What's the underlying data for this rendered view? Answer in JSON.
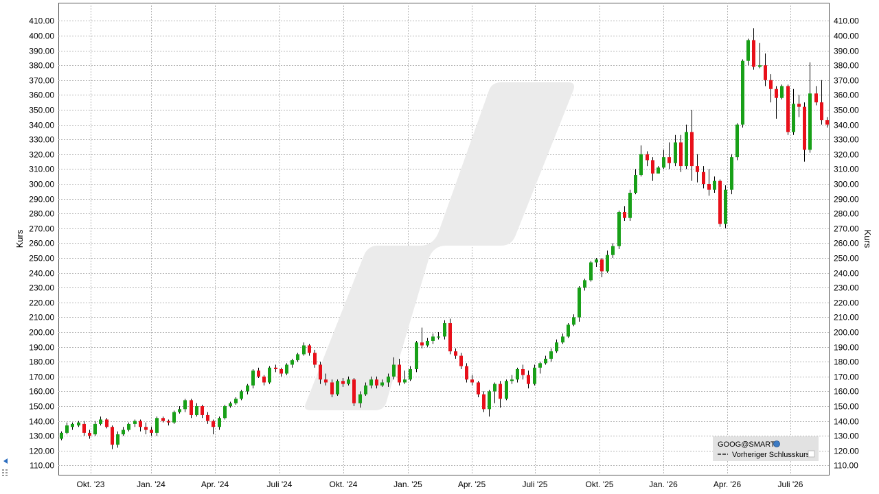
{
  "chart_data": {
    "type": "candlestick",
    "symbol": "GOOG@SMART",
    "ylabel_left": "Kurs",
    "ylabel_right": "Kurs",
    "ylim": [
      104,
      414
    ],
    "y_ticks": [
      110,
      120,
      130,
      140,
      150,
      160,
      170,
      180,
      190,
      200,
      210,
      220,
      230,
      240,
      250,
      260,
      270,
      280,
      290,
      300,
      310,
      320,
      330,
      340,
      350,
      360,
      370,
      380,
      390,
      400,
      410
    ],
    "x_ticks": [
      "Okt. '23",
      "Jan. '24",
      "Apr. '24",
      "Juli '24",
      "Okt. '24",
      "Jan. '25",
      "Apr. '25",
      "Juli '25",
      "Okt. '25",
      "Jan. '26",
      "Apr. '26",
      "Juli '26"
    ],
    "grid": true,
    "legend": {
      "position": "bottom-right",
      "title": "GOOG@SMART",
      "items": [
        "Vorheriger Schlusskurs"
      ]
    },
    "up_color": "#18a018",
    "down_color": "#e8101a",
    "candles": [
      [
        128,
        132,
        127,
        133
      ],
      [
        132,
        137,
        131,
        139
      ],
      [
        136,
        138,
        134,
        139
      ],
      [
        137,
        139,
        136,
        140
      ],
      [
        138,
        132,
        130,
        140
      ],
      [
        132,
        130,
        128,
        134
      ],
      [
        131,
        138,
        130,
        140
      ],
      [
        138,
        141,
        137,
        143
      ],
      [
        141,
        136,
        135,
        142
      ],
      [
        136,
        124,
        121,
        137
      ],
      [
        124,
        131,
        122,
        133
      ],
      [
        131,
        134,
        130,
        136
      ],
      [
        134,
        138,
        133,
        139
      ],
      [
        138,
        140,
        136,
        141
      ],
      [
        140,
        136,
        133,
        141
      ],
      [
        136,
        134,
        131,
        139
      ],
      [
        134,
        132,
        130,
        136
      ],
      [
        132,
        142,
        130,
        143
      ],
      [
        142,
        140,
        139,
        143
      ],
      [
        140,
        139,
        137,
        141
      ],
      [
        139,
        146,
        138,
        147
      ],
      [
        146,
        148,
        145,
        150
      ],
      [
        148,
        154,
        146,
        155
      ],
      [
        154,
        144,
        142,
        155
      ],
      [
        144,
        150,
        143,
        152
      ],
      [
        150,
        144,
        142,
        151
      ],
      [
        144,
        140,
        138,
        146
      ],
      [
        140,
        136,
        131,
        141
      ],
      [
        136,
        142,
        134,
        143
      ],
      [
        142,
        150,
        141,
        151
      ],
      [
        150,
        152,
        149,
        153
      ],
      [
        152,
        155,
        151,
        156
      ],
      [
        155,
        160,
        154,
        161
      ],
      [
        160,
        164,
        158,
        165
      ],
      [
        164,
        174,
        162,
        175
      ],
      [
        174,
        170,
        169,
        176
      ],
      [
        170,
        166,
        164,
        171
      ],
      [
        166,
        176,
        165,
        177
      ],
      [
        176,
        175,
        173,
        178
      ],
      [
        175,
        172,
        170,
        176
      ],
      [
        172,
        178,
        171,
        179
      ],
      [
        178,
        181,
        176,
        182
      ],
      [
        181,
        185,
        180,
        186
      ],
      [
        185,
        191,
        184,
        193
      ],
      [
        191,
        186,
        184,
        192
      ],
      [
        186,
        178,
        176,
        188
      ],
      [
        178,
        168,
        165,
        180
      ],
      [
        168,
        166,
        164,
        172
      ],
      [
        166,
        158,
        156,
        168
      ],
      [
        158,
        167,
        157,
        168
      ],
      [
        167,
        165,
        163,
        169
      ],
      [
        165,
        168,
        164,
        170
      ],
      [
        168,
        152,
        150,
        169
      ],
      [
        152,
        158,
        149,
        160
      ],
      [
        158,
        164,
        157,
        166
      ],
      [
        164,
        168,
        162,
        170
      ],
      [
        168,
        164,
        162,
        170
      ],
      [
        164,
        166,
        163,
        168
      ],
      [
        166,
        170,
        163,
        172
      ],
      [
        170,
        178,
        168,
        183
      ],
      [
        178,
        166,
        164,
        182
      ],
      [
        166,
        168,
        165,
        174
      ],
      [
        168,
        175,
        167,
        177
      ],
      [
        175,
        193,
        173,
        194
      ],
      [
        193,
        191,
        189,
        203
      ],
      [
        191,
        194,
        190,
        196
      ],
      [
        194,
        197,
        192,
        199
      ],
      [
        197,
        197,
        195,
        200
      ],
      [
        197,
        206,
        195,
        208
      ],
      [
        206,
        187,
        185,
        209
      ],
      [
        187,
        184,
        182,
        189
      ],
      [
        184,
        177,
        175,
        186
      ],
      [
        177,
        168,
        166,
        179
      ],
      [
        168,
        166,
        164,
        171
      ],
      [
        166,
        158,
        156,
        167
      ],
      [
        158,
        148,
        146,
        160
      ],
      [
        148,
        160,
        143,
        161
      ],
      [
        160,
        165,
        152,
        166
      ],
      [
        165,
        155,
        149,
        167
      ],
      [
        155,
        167,
        154,
        168
      ],
      [
        167,
        168,
        165,
        171
      ],
      [
        168,
        175,
        166,
        176
      ],
      [
        175,
        171,
        168,
        178
      ],
      [
        171,
        165,
        162,
        174
      ],
      [
        165,
        176,
        164,
        178
      ],
      [
        176,
        179,
        172,
        180
      ],
      [
        179,
        182,
        178,
        184
      ],
      [
        182,
        187,
        180,
        189
      ],
      [
        187,
        193,
        186,
        195
      ],
      [
        193,
        197,
        192,
        199
      ],
      [
        197,
        205,
        196,
        206
      ],
      [
        205,
        210,
        204,
        212
      ],
      [
        210,
        230,
        207,
        231
      ],
      [
        230,
        235,
        228,
        236
      ],
      [
        235,
        247,
        234,
        248
      ],
      [
        247,
        249,
        244,
        250
      ],
      [
        249,
        241,
        237,
        250
      ],
      [
        241,
        252,
        240,
        255
      ],
      [
        252,
        258,
        250,
        260
      ],
      [
        258,
        281,
        256,
        282
      ],
      [
        281,
        277,
        275,
        285
      ],
      [
        277,
        294,
        275,
        296
      ],
      [
        294,
        306,
        293,
        310
      ],
      [
        306,
        320,
        305,
        326
      ],
      [
        320,
        316,
        312,
        322
      ],
      [
        316,
        307,
        302,
        318
      ],
      [
        307,
        311,
        307,
        312
      ],
      [
        311,
        318,
        310,
        323
      ],
      [
        318,
        314,
        310,
        328
      ],
      [
        314,
        328,
        312,
        333
      ],
      [
        328,
        312,
        308,
        333
      ],
      [
        312,
        335,
        310,
        340
      ],
      [
        335,
        312,
        302,
        350
      ],
      [
        312,
        308,
        301,
        320
      ],
      [
        308,
        300,
        297,
        312
      ],
      [
        300,
        296,
        292,
        310
      ],
      [
        296,
        302,
        294,
        305
      ],
      [
        302,
        273,
        271,
        303
      ],
      [
        273,
        296,
        270,
        299
      ],
      [
        296,
        318,
        293,
        320
      ],
      [
        318,
        340,
        316,
        341
      ],
      [
        340,
        383,
        338,
        384
      ],
      [
        383,
        397,
        380,
        398
      ],
      [
        397,
        379,
        377,
        405
      ],
      [
        379,
        380,
        378,
        395
      ],
      [
        380,
        370,
        366,
        388
      ],
      [
        370,
        364,
        355,
        374
      ],
      [
        364,
        358,
        344,
        366
      ],
      [
        358,
        366,
        357,
        367
      ],
      [
        366,
        335,
        333,
        367
      ],
      [
        335,
        354,
        333,
        364
      ],
      [
        354,
        352,
        345,
        360
      ],
      [
        352,
        323,
        315,
        355
      ],
      [
        323,
        361,
        321,
        382
      ],
      [
        361,
        355,
        353,
        366
      ],
      [
        355,
        343,
        340,
        370
      ],
      [
        343,
        340,
        338,
        345
      ]
    ]
  }
}
